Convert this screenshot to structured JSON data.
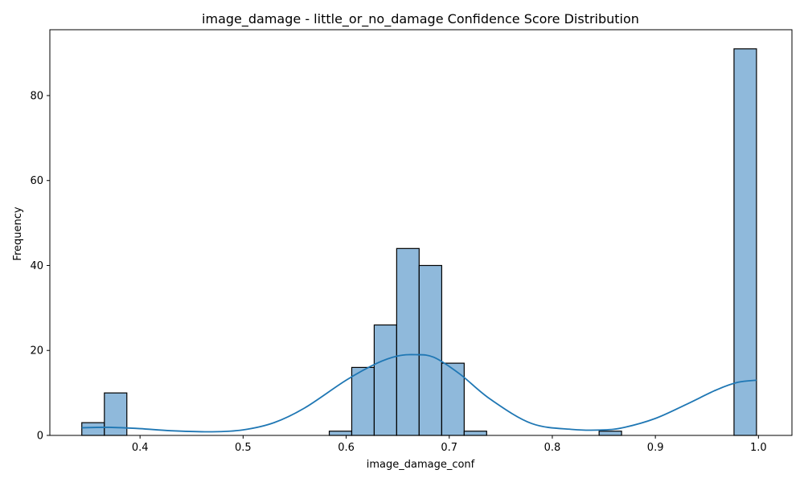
{
  "chart_data": {
    "type": "histogram",
    "title": "image_damage - little_or_no_damage Confidence Score Distribution",
    "xlabel": "image_damage_conf",
    "ylabel": "Frequency",
    "xlim": [
      0.3125,
      1.0325
    ],
    "ylim": [
      0,
      95.5
    ],
    "x_ticks": [
      0.4,
      0.5,
      0.6,
      0.7,
      0.8,
      0.9,
      1.0
    ],
    "x_tick_labels": [
      "0.4",
      "0.5",
      "0.6",
      "0.7",
      "0.8",
      "0.9",
      "1.0"
    ],
    "y_ticks": [
      0,
      20,
      40,
      60,
      80
    ],
    "y_tick_labels": [
      "0",
      "20",
      "40",
      "60",
      "80"
    ],
    "bin_edges": [
      0.3435,
      0.3654,
      0.3872,
      0.409,
      0.4308,
      0.4526,
      0.4745,
      0.4963,
      0.5181,
      0.5399,
      0.5617,
      0.5836,
      0.6054,
      0.6272,
      0.649,
      0.6708,
      0.6927,
      0.7145,
      0.7363,
      0.7581,
      0.7799,
      0.8018,
      0.8236,
      0.8454,
      0.8672,
      0.889,
      0.9109,
      0.9327,
      0.9545,
      0.9763,
      0.9981
    ],
    "counts": [
      3,
      10,
      0,
      0,
      0,
      0,
      0,
      0,
      0,
      0,
      0,
      1,
      16,
      26,
      44,
      40,
      17,
      1,
      0,
      0,
      0,
      0,
      0,
      1,
      0,
      0,
      0,
      0,
      0,
      91
    ],
    "bar_color": "#8fb9db",
    "edge_color": "#000000",
    "kde": {
      "color": "#1f77b4",
      "x": [
        0.3435,
        0.37,
        0.4,
        0.43,
        0.47,
        0.5,
        0.53,
        0.56,
        0.6,
        0.63,
        0.65,
        0.667,
        0.685,
        0.71,
        0.74,
        0.78,
        0.82,
        0.85,
        0.87,
        0.9,
        0.93,
        0.96,
        0.98,
        0.9981
      ],
      "y": [
        1.8,
        1.9,
        1.6,
        1.1,
        0.85,
        1.3,
        3.0,
        6.5,
        13.0,
        17.0,
        18.7,
        19.0,
        18.4,
        14.5,
        8.5,
        2.8,
        1.4,
        1.3,
        1.9,
        4.0,
        7.3,
        10.8,
        12.5,
        13.0
      ]
    }
  }
}
